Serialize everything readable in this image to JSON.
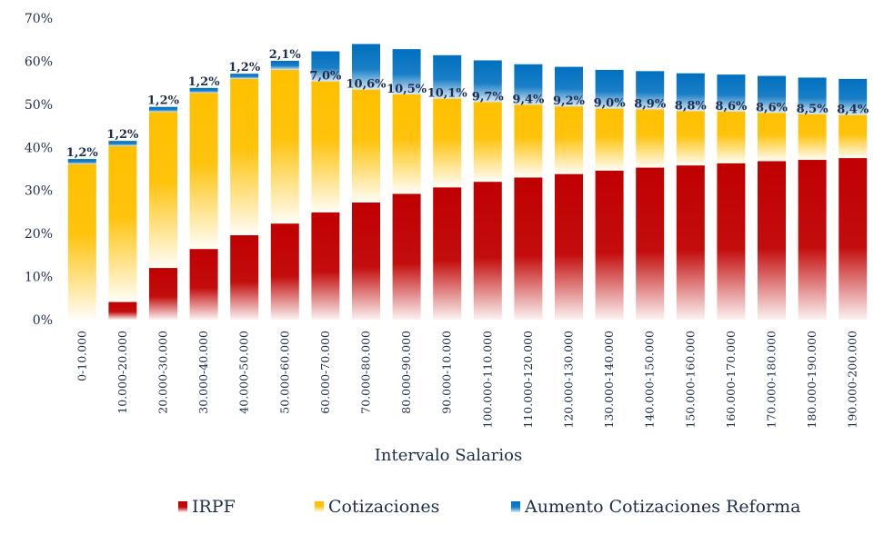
{
  "chart_data": {
    "type": "bar",
    "stacked": true,
    "xlabel": "Intervalo Salarios",
    "ylabel": "",
    "ylim": [
      0,
      70
    ],
    "y_ticks": [
      "0%",
      "10%",
      "20%",
      "30%",
      "40%",
      "50%",
      "60%",
      "70%"
    ],
    "y_tick_values": [
      0,
      10,
      20,
      30,
      40,
      50,
      60,
      70
    ],
    "grid": false,
    "legend_position": "bottom",
    "categories": [
      "0-10.000",
      "10.000-20.000",
      "20.000-30.000",
      "30.000-40.000",
      "40.000-50.000",
      "50.000-60.000",
      "60.000-70.000",
      "70.000-80.000",
      "80.000-90.000",
      "90.000-10.000",
      "100.000-110.000",
      "110.000-120.000",
      "120.000-130.000",
      "130.000-140.000",
      "140.000-150.000",
      "150.000-160.000",
      "160.000-170.000",
      "170.000-180.000",
      "180.000-190.000",
      "190.000-200.000"
    ],
    "series": [
      {
        "name": "IRPF",
        "color": "#c00000",
        "values": [
          0,
          4.1,
          12.0,
          16.4,
          19.6,
          22.3,
          24.9,
          27.2,
          29.2,
          30.7,
          32.0,
          33.0,
          33.8,
          34.6,
          35.3,
          35.8,
          36.3,
          36.8,
          37.1,
          37.5
        ]
      },
      {
        "name": "Cotizaciones",
        "color": "#ffc000",
        "values": [
          36.1,
          36.2,
          36.2,
          36.2,
          36.3,
          35.7,
          30.4,
          26.2,
          23.1,
          20.6,
          18.5,
          16.9,
          15.7,
          14.4,
          13.5,
          12.6,
          12.0,
          11.2,
          10.6,
          10.0
        ]
      },
      {
        "name": "Aumento Cotizaciones Reforma",
        "color": "#0070c0",
        "values": [
          1.2,
          1.2,
          1.2,
          1.2,
          1.2,
          2.1,
          7.0,
          10.6,
          10.5,
          10.1,
          9.7,
          9.4,
          9.2,
          9.0,
          8.9,
          8.8,
          8.6,
          8.6,
          8.5,
          8.4
        ]
      }
    ],
    "data_labels": [
      "1,2%",
      "1,2%",
      "1,2%",
      "1,2%",
      "1,2%",
      "2,1%",
      "7,0%",
      "10,6%",
      "10,5%",
      "10,1%",
      "9,7%",
      "9,4%",
      "9,2%",
      "9,0%",
      "8,9%",
      "8,8%",
      "8,6%",
      "8,6%",
      "8,5%",
      "8,4%"
    ]
  }
}
